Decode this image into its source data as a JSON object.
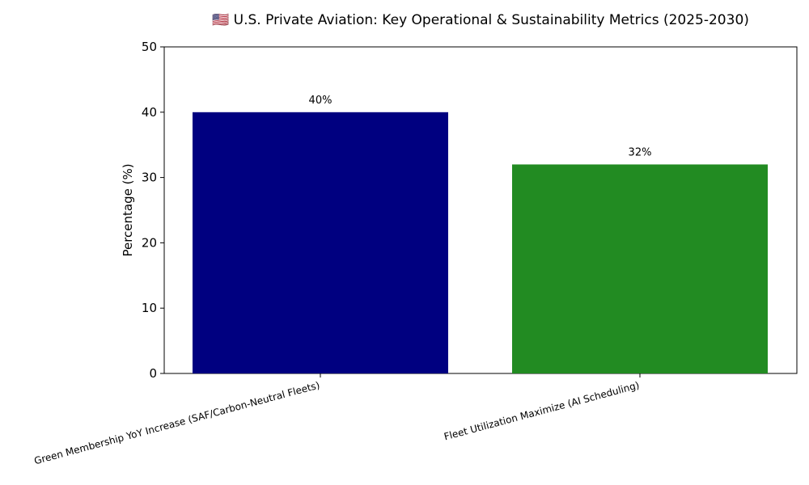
{
  "chart_data": {
    "type": "bar",
    "title": "🇺🇸 U.S. Private Aviation: Key Operational & Sustainability Metrics (2025-2030)",
    "categories": [
      "Green Membership YoY Increase (SAF/Carbon-Neutral Fleets)",
      "Fleet Utilization Maximize (AI Scheduling)"
    ],
    "values": [
      40,
      32
    ],
    "data_labels": [
      "40%",
      "32%"
    ],
    "colors": [
      "#000080",
      "#228b22"
    ],
    "xlabel": "",
    "ylabel": "Percentage (%)",
    "ylim": [
      0,
      50
    ],
    "yticks": [
      0,
      10,
      20,
      30,
      40,
      50
    ],
    "grid": false,
    "legend": "none"
  }
}
